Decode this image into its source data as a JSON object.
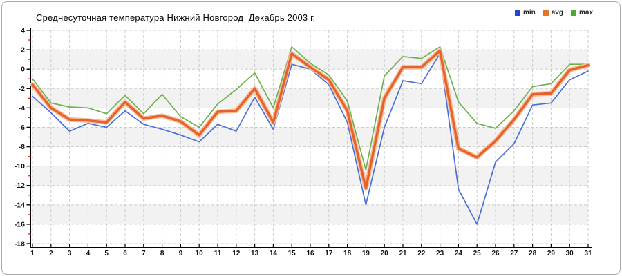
{
  "title": "Среднесуточная температура Нижний Новгород  Декабрь 2003 г.",
  "legend": [
    {
      "label": "min",
      "color": "#2445cc"
    },
    {
      "label": "avg",
      "color": "#e87228"
    },
    {
      "label": "max",
      "color": "#49ad27"
    }
  ],
  "chart_data": {
    "type": "line",
    "title": "Среднесуточная температура Нижний Новгород  Декабрь 2003 г.",
    "xlabel": "",
    "ylabel": "",
    "x": [
      1,
      2,
      3,
      4,
      5,
      6,
      7,
      8,
      9,
      10,
      11,
      12,
      13,
      14,
      15,
      16,
      17,
      18,
      19,
      20,
      21,
      22,
      23,
      24,
      25,
      26,
      27,
      28,
      29,
      30,
      31
    ],
    "series": [
      {
        "name": "min",
        "color": "#4a6fd9",
        "width": 1.7,
        "values": [
          -2.8,
          -4.5,
          -6.4,
          -5.6,
          -6.0,
          -4.3,
          -5.7,
          -6.2,
          -6.8,
          -7.5,
          -5.7,
          -6.4,
          -2.9,
          -6.2,
          0.5,
          0.0,
          -1.6,
          -5.5,
          -14.0,
          -6.0,
          -1.2,
          -1.5,
          1.6,
          -12.4,
          -16.0,
          -9.6,
          -7.7,
          -3.7,
          -3.5,
          -1.1,
          -0.2
        ]
      },
      {
        "name": "avg",
        "color": "#e7622b",
        "halo": "#f6bb95",
        "width": 3.4,
        "values": [
          -1.6,
          -4.0,
          -5.2,
          -5.3,
          -5.5,
          -3.4,
          -5.1,
          -4.8,
          -5.4,
          -6.8,
          -4.4,
          -4.3,
          -2.0,
          -5.5,
          1.6,
          0.2,
          -1.1,
          -4.3,
          -12.3,
          -3.0,
          0.2,
          0.2,
          1.9,
          -8.2,
          -9.1,
          -7.4,
          -5.2,
          -2.6,
          -2.5,
          -0.1,
          0.4
        ]
      },
      {
        "name": "max",
        "color": "#6db14e",
        "width": 1.7,
        "values": [
          -1.0,
          -3.5,
          -3.9,
          -4.0,
          -4.6,
          -2.7,
          -4.6,
          -2.6,
          -4.9,
          -6.0,
          -3.6,
          -2.1,
          -0.4,
          -4.0,
          2.3,
          0.6,
          -0.6,
          -3.3,
          -10.4,
          -0.7,
          1.3,
          1.1,
          2.3,
          -3.4,
          -5.6,
          -6.1,
          -4.3,
          -1.8,
          -1.5,
          0.5,
          0.5
        ]
      }
    ],
    "ylim": [
      -18,
      4
    ],
    "ytick_step": 2,
    "grid": true,
    "legend_position": "top-right",
    "style": {
      "grid_color": "#cccccc",
      "band_color": "#f2f2f2",
      "axis_color": "#000000",
      "major_tick_color": "#000000",
      "minor_tick_color": "#e03030",
      "tick_label_color": "#111111"
    }
  }
}
